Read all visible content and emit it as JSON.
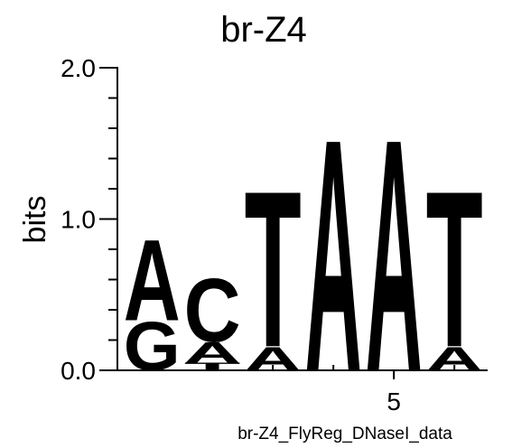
{
  "chart_data": {
    "type": "logo",
    "title": "br-Z4",
    "y_label": "bits",
    "x_label": "br-Z4_FlyReg_DNaseI_data",
    "positions": [
      1,
      2,
      3,
      4,
      5,
      6
    ],
    "stacks": [
      {
        "letters": [
          "G",
          "A"
        ],
        "values": [
          0.33,
          0.55
        ]
      },
      {
        "letters": [
          "T",
          "A",
          "C"
        ],
        "values": [
          0.05,
          0.14,
          0.43
        ]
      },
      {
        "letters": [
          "A",
          "T"
        ],
        "values": [
          0.16,
          1.06
        ]
      },
      {
        "letters": [
          "A"
        ],
        "values": [
          1.58
        ]
      },
      {
        "letters": [
          "A"
        ],
        "values": [
          1.58
        ]
      },
      {
        "letters": [
          "A",
          "T"
        ],
        "values": [
          0.16,
          1.06
        ]
      }
    ],
    "colors": {
      "A": "#008000",
      "C": "#0000ff",
      "G": "#ffa500",
      "T": "#ff0000"
    },
    "ylim": [
      0,
      2
    ],
    "yticks": [
      {
        "value": 0,
        "label": "0.0"
      },
      {
        "value": 1,
        "label": "1.0"
      },
      {
        "value": 2,
        "label": "2.0"
      }
    ],
    "yminorticks": [
      0.2,
      0.4,
      0.6,
      0.8,
      1.2,
      1.4,
      1.6,
      1.8
    ],
    "xlim": [
      0.43,
      6.55
    ],
    "xticks": [
      5
    ],
    "xminorticks": [
      1,
      2,
      3,
      4,
      6
    ]
  }
}
